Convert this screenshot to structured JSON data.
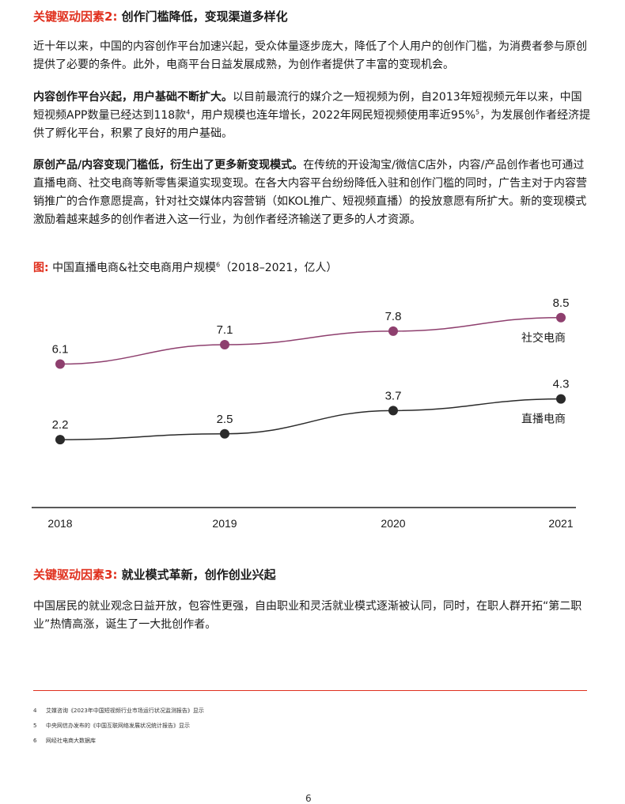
{
  "section1": {
    "label": "关键驱动因素2:",
    "title": "创作门槛降低，变现渠道多样化"
  },
  "p1": "近十年以来，中国的内容创作平台加速兴起，受众体量逐步庞大，降低了个人用户的创作门槛，为消费者参与原创提供了必要的条件。此外，电商平台日益发展成熟，为创作者提供了丰富的变现机会。",
  "p2": {
    "bold": "内容创作平台兴起，用户基础不断扩大。",
    "text_a": "以目前最流行的媒介之一短视频为例，自2013年短视频元年以来，中国短视频APP数量已经达到118款",
    "sup_a": "4",
    "text_b": "，用户规模也连年增长，2022年网民短视频使用率近95%",
    "sup_b": "5",
    "text_c": "，为发展创作者经济提供了孵化平台，积累了良好的用户基础。"
  },
  "p3": {
    "bold": "原创产品/内容变现门槛低，衍生出了更多新变现模式。",
    "text": "在传统的开设淘宝/微信C店外，内容/产品创作者也可通过直播电商、社交电商等新零售渠道实现变现。在各大内容平台纷纷降低入驻和创作门槛的同时，广告主对于内容营销推广的合作意愿提高，针对社交媒体内容营销（如KOL推广、短视频直播）的投放意愿有所扩大。新的变现模式激励着越来越多的创作者进入这一行业，为创作者经济输送了更多的人才资源。"
  },
  "figure": {
    "label": "图:",
    "title": "中国直播电商&社交电商用户规模",
    "sup": "6",
    "unit": "（2018–2021，亿人）"
  },
  "chart_data": {
    "type": "line",
    "title": "中国直播电商&社交电商用户规模（2018–2021，亿人）",
    "x": [
      "2018",
      "2019",
      "2020",
      "2021"
    ],
    "ylim": [
      0,
      10
    ],
    "grid": false,
    "legend": "inline-right",
    "series": [
      {
        "name": "社交电商",
        "values": [
          6.1,
          7.1,
          7.8,
          8.5
        ],
        "color": "#8e3f6e"
      },
      {
        "name": "直播电商",
        "values": [
          2.2,
          2.5,
          3.7,
          4.3
        ],
        "color": "#2a2a2a"
      }
    ]
  },
  "section2": {
    "label": "关键驱动因素3:",
    "title": "就业模式革新，创作创业兴起"
  },
  "p4": "中国居民的就业观念日益开放，包容性更强，自由职业和灵活就业模式逐渐被认同，同时，在职人群开拓“第二职业”热情高涨，诞生了一大批创作者。",
  "footnotes": [
    {
      "num": "4",
      "text": "艾媒咨询《2023年中国短视频行业市场运行状况监测报告》显示"
    },
    {
      "num": "5",
      "text": "中央网信办发布的《中国互联网络发展状况统计报告》显示"
    },
    {
      "num": "6",
      "text": "网经社电商大数据库"
    }
  ],
  "page_number": "6",
  "colors": {
    "accent": "#e0301e",
    "social": "#8e3f6e",
    "live": "#2a2a2a"
  }
}
